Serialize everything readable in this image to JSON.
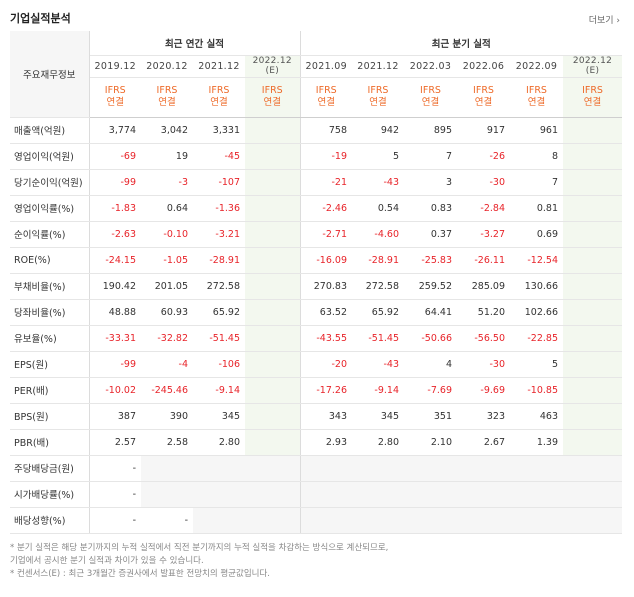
{
  "section": {
    "title": "기업실적분석",
    "more_label": "더보기 ›"
  },
  "headers": {
    "main_label": "주요재무정보",
    "annual_group": "최근 연간 실적",
    "quarter_group": "최근 분기 실적",
    "annual_periods": [
      "2019.12",
      "2020.12",
      "2021.12",
      "2022.12 (E)"
    ],
    "quarter_periods": [
      "2021.09",
      "2021.12",
      "2022.03",
      "2022.06",
      "2022.09",
      "2022.12 (E)"
    ],
    "type_top": "IFRS",
    "type_bottom": "연결"
  },
  "rows": [
    {
      "label": "매출액(억원)",
      "annual": [
        "3,774",
        "3,042",
        "3,331",
        ""
      ],
      "quarter": [
        "758",
        "942",
        "895",
        "917",
        "961",
        ""
      ]
    },
    {
      "label": "영업이익(억원)",
      "annual": [
        "-69",
        "19",
        "-45",
        ""
      ],
      "quarter": [
        "-19",
        "5",
        "7",
        "-26",
        "8",
        ""
      ]
    },
    {
      "label": "당기순이익(억원)",
      "annual": [
        "-99",
        "-3",
        "-107",
        ""
      ],
      "quarter": [
        "-21",
        "-43",
        "3",
        "-30",
        "7",
        ""
      ]
    },
    {
      "label": "영업이익률(%)",
      "annual": [
        "-1.83",
        "0.64",
        "-1.36",
        ""
      ],
      "quarter": [
        "-2.46",
        "0.54",
        "0.83",
        "-2.84",
        "0.81",
        ""
      ]
    },
    {
      "label": "순이익률(%)",
      "annual": [
        "-2.63",
        "-0.10",
        "-3.21",
        ""
      ],
      "quarter": [
        "-2.71",
        "-4.60",
        "0.37",
        "-3.27",
        "0.69",
        ""
      ]
    },
    {
      "label": "ROE(%)",
      "annual": [
        "-24.15",
        "-1.05",
        "-28.91",
        ""
      ],
      "quarter": [
        "-16.09",
        "-28.91",
        "-25.83",
        "-26.11",
        "-12.54",
        ""
      ]
    },
    {
      "label": "부채비율(%)",
      "annual": [
        "190.42",
        "201.05",
        "272.58",
        ""
      ],
      "quarter": [
        "270.83",
        "272.58",
        "259.52",
        "285.09",
        "130.66",
        ""
      ]
    },
    {
      "label": "당좌비율(%)",
      "annual": [
        "48.88",
        "60.93",
        "65.92",
        ""
      ],
      "quarter": [
        "63.52",
        "65.92",
        "64.41",
        "51.20",
        "102.66",
        ""
      ]
    },
    {
      "label": "유보율(%)",
      "annual": [
        "-33.31",
        "-32.82",
        "-51.45",
        ""
      ],
      "quarter": [
        "-43.55",
        "-51.45",
        "-50.66",
        "-56.50",
        "-22.85",
        ""
      ]
    },
    {
      "label": "EPS(원)",
      "annual": [
        "-99",
        "-4",
        "-106",
        ""
      ],
      "quarter": [
        "-20",
        "-43",
        "4",
        "-30",
        "5",
        ""
      ]
    },
    {
      "label": "PER(배)",
      "annual": [
        "-10.02",
        "-245.46",
        "-9.14",
        ""
      ],
      "quarter": [
        "-17.26",
        "-9.14",
        "-7.69",
        "-9.69",
        "-10.85",
        ""
      ]
    },
    {
      "label": "BPS(원)",
      "annual": [
        "387",
        "390",
        "345",
        ""
      ],
      "quarter": [
        "343",
        "345",
        "351",
        "323",
        "463",
        ""
      ]
    },
    {
      "label": "PBR(배)",
      "annual": [
        "2.57",
        "2.58",
        "2.80",
        ""
      ],
      "quarter": [
        "2.93",
        "2.80",
        "2.10",
        "2.67",
        "1.39",
        ""
      ]
    },
    {
      "label": "주당배당금(원)",
      "annual": [
        "-",
        null,
        null,
        null
      ],
      "quarter": [
        null,
        null,
        null,
        null,
        null,
        null
      ]
    },
    {
      "label": "시가배당률(%)",
      "annual": [
        "-",
        null,
        null,
        null
      ],
      "quarter": [
        null,
        null,
        null,
        null,
        null,
        null
      ]
    },
    {
      "label": "배당성향(%)",
      "annual": [
        "-",
        "-",
        null,
        null
      ],
      "quarter": [
        null,
        null,
        null,
        null,
        null,
        null
      ]
    }
  ],
  "notes": [
    "* 분기 실적은 해당 분기까지의 누적 실적에서 직전 분기까지의 누적 실적을 차감하는 방식으로 계산되므로,",
    "  기업에서 공시한 분기 실적과 차이가 있을 수 있습니다.",
    "* 컨센서스(E) : 최근 3개월간 증권사에서 발표한 전망치의 평균값입니다."
  ]
}
